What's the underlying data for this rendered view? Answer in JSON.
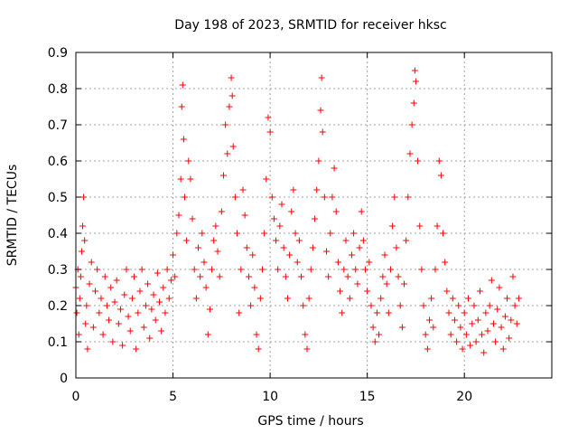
{
  "chart_data": {
    "type": "scatter",
    "title": "Day 198 of 2023, SRMTID for receiver hksc",
    "xlabel": "GPS time / hours",
    "ylabel": "SRMTID / TECUs",
    "xlim": [
      0,
      24.5
    ],
    "ylim": [
      0,
      0.9
    ],
    "x_ticks": [
      0,
      5,
      10,
      15,
      20
    ],
    "x_tick_labels": [
      "0",
      "5",
      "10",
      "15",
      "20"
    ],
    "y_ticks": [
      0,
      0.1,
      0.2,
      0.3,
      0.4,
      0.5,
      0.6,
      0.7,
      0.8,
      0.9
    ],
    "y_tick_labels": [
      "0",
      "0.1",
      "0.2",
      "0.3",
      "0.4",
      "0.5",
      "0.6",
      "0.7",
      "0.8",
      "0.9"
    ],
    "grid": true,
    "marker": "+",
    "color": "#ff0000",
    "series": [
      {
        "name": "SRMTID",
        "points": [
          [
            0.0,
            0.25
          ],
          [
            0.05,
            0.18
          ],
          [
            0.1,
            0.3
          ],
          [
            0.15,
            0.12
          ],
          [
            0.2,
            0.22
          ],
          [
            0.25,
            0.28
          ],
          [
            0.3,
            0.35
          ],
          [
            0.35,
            0.42
          ],
          [
            0.4,
            0.5
          ],
          [
            0.45,
            0.38
          ],
          [
            0.5,
            0.15
          ],
          [
            0.55,
            0.2
          ],
          [
            0.6,
            0.08
          ],
          [
            0.7,
            0.26
          ],
          [
            0.8,
            0.32
          ],
          [
            0.9,
            0.14
          ],
          [
            1.0,
            0.24
          ],
          [
            1.1,
            0.3
          ],
          [
            1.2,
            0.18
          ],
          [
            1.3,
            0.22
          ],
          [
            1.4,
            0.12
          ],
          [
            1.5,
            0.28
          ],
          [
            1.6,
            0.2
          ],
          [
            1.7,
            0.16
          ],
          [
            1.8,
            0.25
          ],
          [
            1.9,
            0.1
          ],
          [
            2.0,
            0.21
          ],
          [
            2.1,
            0.27
          ],
          [
            2.2,
            0.15
          ],
          [
            2.3,
            0.19
          ],
          [
            2.4,
            0.09
          ],
          [
            2.5,
            0.23
          ],
          [
            2.6,
            0.3
          ],
          [
            2.7,
            0.17
          ],
          [
            2.8,
            0.13
          ],
          [
            2.9,
            0.22
          ],
          [
            3.0,
            0.28
          ],
          [
            3.1,
            0.08
          ],
          [
            3.2,
            0.18
          ],
          [
            3.3,
            0.24
          ],
          [
            3.4,
            0.3
          ],
          [
            3.5,
            0.14
          ],
          [
            3.6,
            0.2
          ],
          [
            3.7,
            0.26
          ],
          [
            3.8,
            0.11
          ],
          [
            3.9,
            0.19
          ],
          [
            4.0,
            0.23
          ],
          [
            4.1,
            0.16
          ],
          [
            4.2,
            0.29
          ],
          [
            4.3,
            0.21
          ],
          [
            4.4,
            0.13
          ],
          [
            4.5,
            0.25
          ],
          [
            4.6,
            0.18
          ],
          [
            4.7,
            0.3
          ],
          [
            4.8,
            0.22
          ],
          [
            4.9,
            0.27
          ],
          [
            5.0,
            0.34
          ],
          [
            5.1,
            0.28
          ],
          [
            5.2,
            0.4
          ],
          [
            5.3,
            0.45
          ],
          [
            5.4,
            0.55
          ],
          [
            5.45,
            0.75
          ],
          [
            5.5,
            0.81
          ],
          [
            5.55,
            0.66
          ],
          [
            5.6,
            0.5
          ],
          [
            5.7,
            0.38
          ],
          [
            5.8,
            0.6
          ],
          [
            5.9,
            0.55
          ],
          [
            6.0,
            0.44
          ],
          [
            6.1,
            0.3
          ],
          [
            6.2,
            0.22
          ],
          [
            6.3,
            0.36
          ],
          [
            6.4,
            0.28
          ],
          [
            6.5,
            0.4
          ],
          [
            6.6,
            0.32
          ],
          [
            6.7,
            0.25
          ],
          [
            6.8,
            0.12
          ],
          [
            6.9,
            0.19
          ],
          [
            7.0,
            0.3
          ],
          [
            7.1,
            0.38
          ],
          [
            7.2,
            0.42
          ],
          [
            7.3,
            0.35
          ],
          [
            7.4,
            0.28
          ],
          [
            7.5,
            0.46
          ],
          [
            7.6,
            0.56
          ],
          [
            7.7,
            0.7
          ],
          [
            7.8,
            0.62
          ],
          [
            7.9,
            0.75
          ],
          [
            8.0,
            0.83
          ],
          [
            8.05,
            0.78
          ],
          [
            8.1,
            0.64
          ],
          [
            8.2,
            0.5
          ],
          [
            8.3,
            0.4
          ],
          [
            8.4,
            0.18
          ],
          [
            8.5,
            0.3
          ],
          [
            8.6,
            0.52
          ],
          [
            8.7,
            0.45
          ],
          [
            8.8,
            0.36
          ],
          [
            8.9,
            0.28
          ],
          [
            9.0,
            0.2
          ],
          [
            9.1,
            0.34
          ],
          [
            9.2,
            0.25
          ],
          [
            9.3,
            0.12
          ],
          [
            9.4,
            0.08
          ],
          [
            9.5,
            0.22
          ],
          [
            9.6,
            0.3
          ],
          [
            9.7,
            0.4
          ],
          [
            9.8,
            0.55
          ],
          [
            9.9,
            0.72
          ],
          [
            10.0,
            0.68
          ],
          [
            10.1,
            0.5
          ],
          [
            10.2,
            0.44
          ],
          [
            10.3,
            0.38
          ],
          [
            10.4,
            0.3
          ],
          [
            10.5,
            0.42
          ],
          [
            10.6,
            0.48
          ],
          [
            10.7,
            0.36
          ],
          [
            10.8,
            0.28
          ],
          [
            10.9,
            0.22
          ],
          [
            11.0,
            0.34
          ],
          [
            11.1,
            0.46
          ],
          [
            11.2,
            0.52
          ],
          [
            11.3,
            0.4
          ],
          [
            11.4,
            0.32
          ],
          [
            11.5,
            0.38
          ],
          [
            11.6,
            0.28
          ],
          [
            11.7,
            0.2
          ],
          [
            11.8,
            0.12
          ],
          [
            11.9,
            0.08
          ],
          [
            12.0,
            0.22
          ],
          [
            12.1,
            0.3
          ],
          [
            12.2,
            0.36
          ],
          [
            12.3,
            0.44
          ],
          [
            12.4,
            0.52
          ],
          [
            12.5,
            0.6
          ],
          [
            12.6,
            0.74
          ],
          [
            12.65,
            0.83
          ],
          [
            12.7,
            0.68
          ],
          [
            12.8,
            0.5
          ],
          [
            12.9,
            0.35
          ],
          [
            13.0,
            0.28
          ],
          [
            13.1,
            0.4
          ],
          [
            13.2,
            0.5
          ],
          [
            13.3,
            0.58
          ],
          [
            13.4,
            0.46
          ],
          [
            13.5,
            0.32
          ],
          [
            13.6,
            0.24
          ],
          [
            13.7,
            0.18
          ],
          [
            13.8,
            0.3
          ],
          [
            13.9,
            0.38
          ],
          [
            14.0,
            0.28
          ],
          [
            14.1,
            0.22
          ],
          [
            14.2,
            0.34
          ],
          [
            14.3,
            0.4
          ],
          [
            14.4,
            0.3
          ],
          [
            14.5,
            0.26
          ],
          [
            14.6,
            0.36
          ],
          [
            14.7,
            0.46
          ],
          [
            14.8,
            0.38
          ],
          [
            14.9,
            0.3
          ],
          [
            15.0,
            0.24
          ],
          [
            15.1,
            0.32
          ],
          [
            15.2,
            0.2
          ],
          [
            15.3,
            0.14
          ],
          [
            15.4,
            0.1
          ],
          [
            15.5,
            0.18
          ],
          [
            15.6,
            0.12
          ],
          [
            15.7,
            0.22
          ],
          [
            15.8,
            0.28
          ],
          [
            15.9,
            0.34
          ],
          [
            16.0,
            0.26
          ],
          [
            16.1,
            0.18
          ],
          [
            16.2,
            0.3
          ],
          [
            16.3,
            0.42
          ],
          [
            16.4,
            0.5
          ],
          [
            16.5,
            0.36
          ],
          [
            16.6,
            0.28
          ],
          [
            16.7,
            0.2
          ],
          [
            16.8,
            0.14
          ],
          [
            16.9,
            0.26
          ],
          [
            17.0,
            0.38
          ],
          [
            17.1,
            0.5
          ],
          [
            17.2,
            0.62
          ],
          [
            17.3,
            0.7
          ],
          [
            17.4,
            0.76
          ],
          [
            17.45,
            0.85
          ],
          [
            17.5,
            0.82
          ],
          [
            17.6,
            0.6
          ],
          [
            17.7,
            0.42
          ],
          [
            17.8,
            0.3
          ],
          [
            17.9,
            0.2
          ],
          [
            18.0,
            0.12
          ],
          [
            18.1,
            0.08
          ],
          [
            18.2,
            0.16
          ],
          [
            18.3,
            0.22
          ],
          [
            18.4,
            0.14
          ],
          [
            18.5,
            0.3
          ],
          [
            18.6,
            0.42
          ],
          [
            18.7,
            0.6
          ],
          [
            18.8,
            0.56
          ],
          [
            18.9,
            0.4
          ],
          [
            19.0,
            0.32
          ],
          [
            19.1,
            0.24
          ],
          [
            19.2,
            0.18
          ],
          [
            19.3,
            0.12
          ],
          [
            19.4,
            0.22
          ],
          [
            19.5,
            0.16
          ],
          [
            19.6,
            0.1
          ],
          [
            19.7,
            0.2
          ],
          [
            19.8,
            0.14
          ],
          [
            19.9,
            0.08
          ],
          [
            20.0,
            0.18
          ],
          [
            20.1,
            0.12
          ],
          [
            20.2,
            0.22
          ],
          [
            20.3,
            0.09
          ],
          [
            20.4,
            0.15
          ],
          [
            20.5,
            0.2
          ],
          [
            20.6,
            0.1
          ],
          [
            20.7,
            0.16
          ],
          [
            20.8,
            0.24
          ],
          [
            20.9,
            0.12
          ],
          [
            21.0,
            0.07
          ],
          [
            21.1,
            0.18
          ],
          [
            21.2,
            0.13
          ],
          [
            21.3,
            0.2
          ],
          [
            21.4,
            0.27
          ],
          [
            21.5,
            0.15
          ],
          [
            21.6,
            0.1
          ],
          [
            21.7,
            0.19
          ],
          [
            21.8,
            0.25
          ],
          [
            21.9,
            0.14
          ],
          [
            22.0,
            0.08
          ],
          [
            22.1,
            0.17
          ],
          [
            22.2,
            0.22
          ],
          [
            22.3,
            0.11
          ],
          [
            22.4,
            0.16
          ],
          [
            22.5,
            0.28
          ],
          [
            22.6,
            0.2
          ],
          [
            22.7,
            0.15
          ],
          [
            22.8,
            0.22
          ]
        ]
      }
    ]
  }
}
